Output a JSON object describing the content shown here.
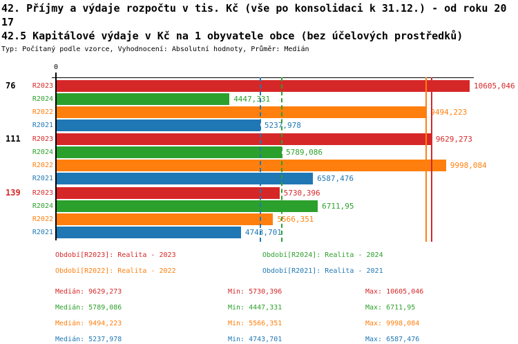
{
  "header": {
    "title_line1": "42. Příjmy a výdaje rozpočtu v tis. Kč (vše po konsolidaci k 31.12.) - od roku 20",
    "title_line2": "17",
    "title2": "42.5 Kapitálové výdaje v Kč na 1 obyvatele obce (bez účelových prostředků)",
    "subtitle": "Typ: Počítaný podle vzorce, Vyhodnocení: Absolutní hodnoty, Průměr: Medián"
  },
  "colors": {
    "R2023": "#d62728",
    "R2024": "#2ca02c",
    "R2022": "#ff7f0e",
    "R2021": "#1f77b4"
  },
  "chart_data": {
    "type": "bar",
    "orientation": "horizontal",
    "title": "42.5 Kapitálové výdaje v Kč na 1 obyvatele obce (bez účelových prostředků)",
    "axis_origin_label": "0",
    "xlim": [
      0,
      10605.046
    ],
    "grid": false,
    "series_order": [
      "R2023",
      "R2024",
      "R2022",
      "R2021"
    ],
    "groups": [
      {
        "label": "76",
        "label_color": "#000000",
        "bars": [
          {
            "series": "R2023",
            "value": 10605.046,
            "display": "10605,046"
          },
          {
            "series": "R2024",
            "value": 4447.331,
            "display": "4447,331"
          },
          {
            "series": "R2022",
            "value": 9494.223,
            "display": "9494,223"
          },
          {
            "series": "R2021",
            "value": 5237.978,
            "display": "5237,978"
          }
        ]
      },
      {
        "label": "111",
        "label_color": "#000000",
        "bars": [
          {
            "series": "R2023",
            "value": 9629.273,
            "display": "9629,273"
          },
          {
            "series": "R2024",
            "value": 5789.086,
            "display": "5789,086"
          },
          {
            "series": "R2022",
            "value": 9998.084,
            "display": "9998,084"
          },
          {
            "series": "R2021",
            "value": 6587.476,
            "display": "6587,476"
          }
        ]
      },
      {
        "label": "139",
        "label_color": "#d62728",
        "bars": [
          {
            "series": "R2023",
            "value": 5730.396,
            "display": "5730,396"
          },
          {
            "series": "R2024",
            "value": 6711.95,
            "display": "6711,95"
          },
          {
            "series": "R2022",
            "value": 5566.351,
            "display": "5566,351"
          },
          {
            "series": "R2021",
            "value": 4743.701,
            "display": "4743,701"
          }
        ]
      }
    ],
    "median_lines": [
      {
        "series": "R2023",
        "value": 9629.273,
        "style": "solid"
      },
      {
        "series": "R2024",
        "value": 5789.086,
        "style": "dashed"
      },
      {
        "series": "R2022",
        "value": 9494.223,
        "style": "solid"
      },
      {
        "series": "R2021",
        "value": 5237.978,
        "style": "dashed"
      }
    ]
  },
  "legend": [
    {
      "series": "R2023",
      "label": "Období[R2023]: Realita - 2023"
    },
    {
      "series": "R2024",
      "label": "Období[R2024]: Realita - 2024"
    },
    {
      "series": "R2022",
      "label": "Období[R2022]: Realita - 2022"
    },
    {
      "series": "R2021",
      "label": "Období[R2021]: Realita - 2021"
    }
  ],
  "stats": [
    {
      "series": "R2023",
      "median": "Medián: 9629,273",
      "min": "Min: 5730,396",
      "max": "Max: 10605,046"
    },
    {
      "series": "R2024",
      "median": "Medián: 5789,086",
      "min": "Min: 4447,331",
      "max": "Max: 6711,95"
    },
    {
      "series": "R2022",
      "median": "Medián: 9494,223",
      "min": "Min: 5566,351",
      "max": "Max: 9998,084"
    },
    {
      "series": "R2021",
      "median": "Medián: 5237,978",
      "min": "Min: 4743,701",
      "max": "Max: 6587,476"
    }
  ]
}
